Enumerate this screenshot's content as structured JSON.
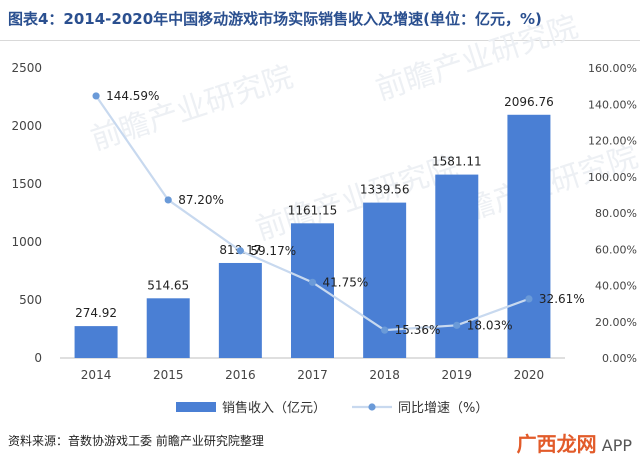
{
  "title": "图表4：2014-2020年中国移动游戏市场实际销售收入及增速(单位：亿元，%)",
  "source": "资料来源：音数协游戏工委 前瞻产业研究院整理",
  "watermark": {
    "brand": "前瞻产业研究院",
    "corner_accent": "广西龙网",
    "corner_suffix": "APP"
  },
  "colors": {
    "bar": "#4a7fd4",
    "line": "#c8d9ef",
    "marker": "#6a9ad8",
    "title": "#2a4f8f"
  },
  "chart_data": {
    "type": "bar",
    "categories": [
      "2014",
      "2015",
      "2016",
      "2017",
      "2018",
      "2019",
      "2020"
    ],
    "series": [
      {
        "name": "销售收入（亿元）",
        "type": "bar",
        "axis": "left",
        "values": [
          274.92,
          514.65,
          819.17,
          1161.15,
          1339.56,
          1581.11,
          2096.76
        ],
        "labels": [
          "274.92",
          "514.65",
          "819.17",
          "1161.15",
          "1339.56",
          "1581.11",
          "2096.76"
        ]
      },
      {
        "name": "同比增速（%）",
        "type": "line",
        "axis": "right",
        "values": [
          144.59,
          87.2,
          59.17,
          41.75,
          15.36,
          18.03,
          32.61
        ],
        "labels": [
          "144.59%",
          "87.20%",
          "59.17%",
          "41.75%",
          "15.36%",
          "18.03%",
          "32.61%"
        ]
      }
    ],
    "y_left": {
      "ylim": [
        0,
        2500
      ],
      "ticks": [
        "0",
        "500",
        "1000",
        "1500",
        "2000",
        "2500"
      ]
    },
    "y_right": {
      "ylim": [
        0,
        160
      ],
      "ticks": [
        "0.00%",
        "20.00%",
        "40.00%",
        "60.00%",
        "80.00%",
        "100.00%",
        "120.00%",
        "140.00%",
        "160.00%"
      ]
    },
    "grid": false,
    "legend": "bottom"
  }
}
